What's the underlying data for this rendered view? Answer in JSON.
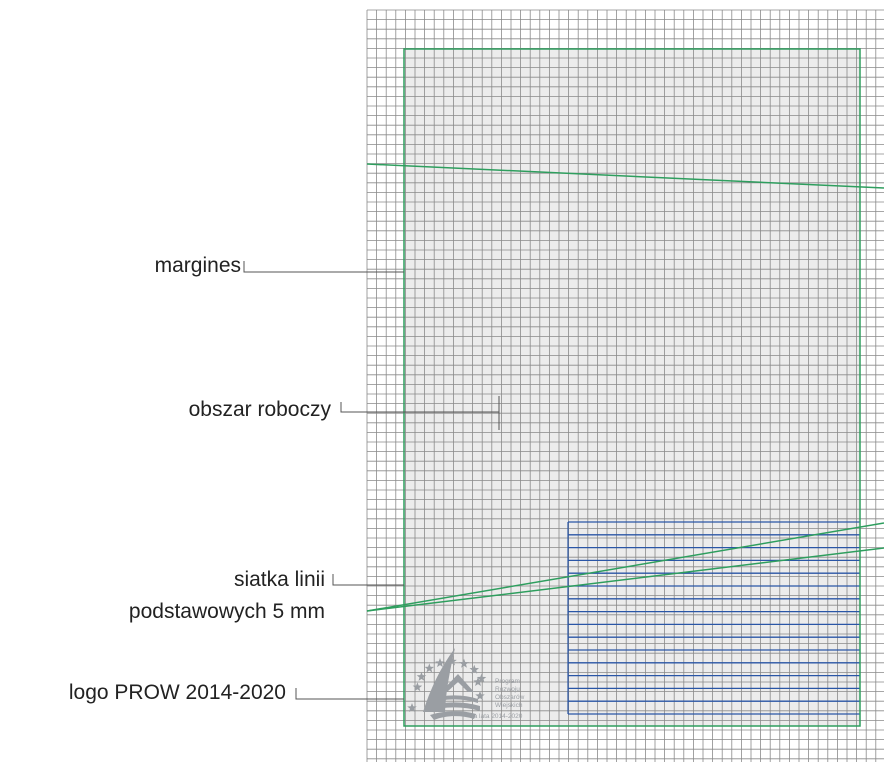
{
  "labels": {
    "margin": "margines",
    "work_area": "obszar roboczy",
    "baseline_grid_1": "siatka linii",
    "baseline_grid_2": "podstawowych 5 mm",
    "logo": "logo PROW 2014-2020"
  },
  "logo": {
    "line_1": "Program",
    "line_2": "Rozwoju",
    "line_3": "Obszarów",
    "line_4": "Wiejskich",
    "line_5": "na lata 2014-2020"
  },
  "colors": {
    "grid": "#8a8a8a",
    "margin_frame": "#2e9e5e",
    "work_area_fill": "#ececec",
    "baseline_lines": "#2a56a6",
    "guide_lines": "#2e9e5e",
    "leader_lines": "#555555",
    "logo_gray": "#9a9ea3"
  },
  "icons": {
    "logo": "prow-logo-icon"
  }
}
